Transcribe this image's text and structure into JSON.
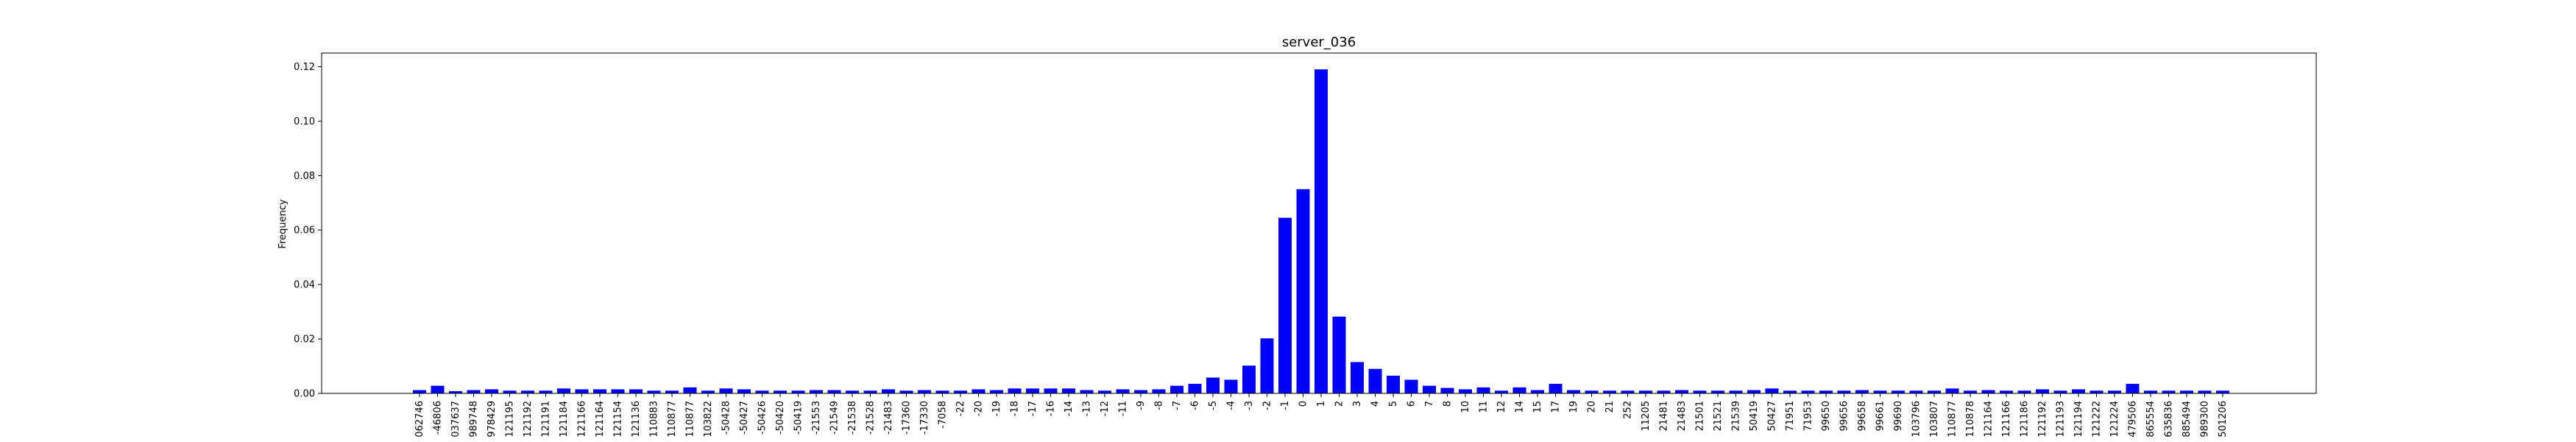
{
  "chart_data": {
    "type": "bar",
    "title": "server_036",
    "xlabel": "",
    "ylabel": "Frequency",
    "ylim": [
      0,
      0.125
    ],
    "yticks": [
      0.0,
      0.02,
      0.04,
      0.06,
      0.08,
      0.1,
      0.12
    ],
    "ytick_labels": [
      "0.00",
      "0.02",
      "0.04",
      "0.06",
      "0.08",
      "0.10",
      "0.12"
    ],
    "grid": false,
    "bar_color": "#0000ff",
    "categories": [
      "062746",
      "-46806",
      "037637",
      "989748",
      "978429",
      "121195",
      "121192",
      "121191",
      "121184",
      "121166",
      "121164",
      "121154",
      "121136",
      "110883",
      "110877",
      "110877",
      "103822",
      "-50428",
      "-50427",
      "-50426",
      "-50420",
      "-50419",
      "-21553",
      "-21549",
      "-21538",
      "-21528",
      "-21483",
      "-17360",
      "-17330",
      "-7058",
      "-22",
      "-20",
      "-19",
      "-18",
      "-17",
      "-16",
      "-14",
      "-13",
      "-12",
      "-11",
      "-9",
      "-8",
      "-7",
      "-6",
      "-5",
      "-4",
      "-3",
      "-2",
      "-1",
      "0",
      "1",
      "2",
      "3",
      "4",
      "5",
      "6",
      "7",
      "8",
      "10",
      "11",
      "12",
      "14",
      "15",
      "17",
      "19",
      "20",
      "21",
      "252",
      "11205",
      "21481",
      "21483",
      "21501",
      "21521",
      "21539",
      "50419",
      "50427",
      "71951",
      "71953",
      "99650",
      "99656",
      "99658",
      "99661",
      "99690",
      "103796",
      "103807",
      "110877",
      "110878",
      "121164",
      "121166",
      "121186",
      "121192",
      "121193",
      "121194",
      "121222",
      "121224",
      "479506",
      "865554",
      "635836",
      "885494",
      "989300",
      "501206"
    ],
    "values": [
      0.0012,
      0.0028,
      0.0008,
      0.0012,
      0.0015,
      0.001,
      0.001,
      0.001,
      0.0018,
      0.0015,
      0.0015,
      0.0015,
      0.0015,
      0.001,
      0.001,
      0.0022,
      0.001,
      0.0018,
      0.0015,
      0.001,
      0.001,
      0.001,
      0.0012,
      0.0012,
      0.001,
      0.001,
      0.0015,
      0.001,
      0.0012,
      0.001,
      0.001,
      0.0015,
      0.0012,
      0.0018,
      0.0018,
      0.0018,
      0.0018,
      0.0012,
      0.001,
      0.0015,
      0.0012,
      0.0015,
      0.0028,
      0.0035,
      0.0058,
      0.005,
      0.0102,
      0.0202,
      0.0645,
      0.075,
      0.119,
      0.0282,
      0.0115,
      0.009,
      0.0065,
      0.005,
      0.0028,
      0.002,
      0.0015,
      0.0022,
      0.001,
      0.0022,
      0.0012,
      0.0035,
      0.0012,
      0.001,
      0.001,
      0.001,
      0.001,
      0.001,
      0.0012,
      0.001,
      0.001,
      0.001,
      0.0012,
      0.0018,
      0.001,
      0.001,
      0.001,
      0.001,
      0.0012,
      0.001,
      0.001,
      0.001,
      0.001,
      0.0018,
      0.001,
      0.0012,
      0.001,
      0.001,
      0.0015,
      0.001,
      0.0015,
      0.001,
      0.001,
      0.0035,
      0.001,
      0.001,
      0.001,
      0.001,
      0.001
    ]
  }
}
